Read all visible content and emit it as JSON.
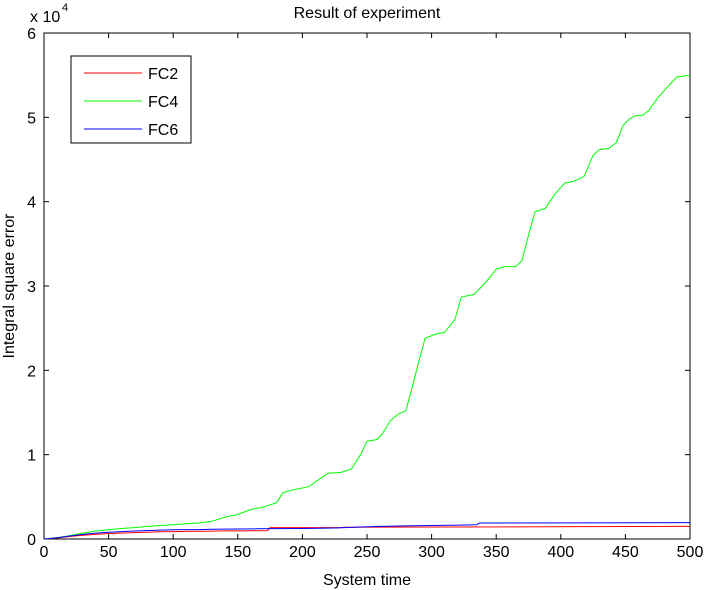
{
  "chart_data": {
    "type": "line",
    "title": "Result of experiment",
    "xlabel": "System time",
    "ylabel": "Integral square error",
    "y_exponent_label": "x 10",
    "y_exponent_power": "4",
    "xlim": [
      0,
      500
    ],
    "ylim": [
      0,
      60000
    ],
    "xticks": [
      0,
      50,
      100,
      150,
      200,
      250,
      300,
      350,
      400,
      450,
      500
    ],
    "yticks": [
      0,
      10000,
      20000,
      30000,
      40000,
      50000,
      60000
    ],
    "ytick_labels": [
      "0",
      "1",
      "2",
      "3",
      "4",
      "5",
      "6"
    ],
    "grid": false,
    "legend_position": "top-left",
    "series": [
      {
        "name": "FC2",
        "color": "#ff0000",
        "points": [
          [
            0,
            0
          ],
          [
            10,
            120
          ],
          [
            20,
            300
          ],
          [
            30,
            450
          ],
          [
            40,
            550
          ],
          [
            50,
            650
          ],
          [
            60,
            700
          ],
          [
            70,
            760
          ],
          [
            80,
            800
          ],
          [
            90,
            850
          ],
          [
            100,
            880
          ],
          [
            110,
            900
          ],
          [
            125,
            930
          ],
          [
            140,
            960
          ],
          [
            173,
            1000
          ],
          [
            175,
            1350
          ],
          [
            230,
            1350
          ],
          [
            232,
            1400
          ],
          [
            500,
            1500
          ]
        ]
      },
      {
        "name": "FC4",
        "color": "#00ff00",
        "points": [
          [
            0,
            0
          ],
          [
            10,
            150
          ],
          [
            20,
            400
          ],
          [
            30,
            700
          ],
          [
            40,
            950
          ],
          [
            50,
            1100
          ],
          [
            60,
            1250
          ],
          [
            70,
            1350
          ],
          [
            80,
            1500
          ],
          [
            90,
            1600
          ],
          [
            100,
            1700
          ],
          [
            110,
            1800
          ],
          [
            120,
            1900
          ],
          [
            130,
            2100
          ],
          [
            140,
            2600
          ],
          [
            150,
            2900
          ],
          [
            160,
            3500
          ],
          [
            170,
            3800
          ],
          [
            180,
            4300
          ],
          [
            185,
            5500
          ],
          [
            195,
            5900
          ],
          [
            205,
            6200
          ],
          [
            215,
            7300
          ],
          [
            220,
            7800
          ],
          [
            230,
            7900
          ],
          [
            238,
            8300
          ],
          [
            245,
            10000
          ],
          [
            250,
            11600
          ],
          [
            258,
            11800
          ],
          [
            262,
            12500
          ],
          [
            268,
            14000
          ],
          [
            274,
            14800
          ],
          [
            280,
            15200
          ],
          [
            285,
            18000
          ],
          [
            290,
            21000
          ],
          [
            295,
            23800
          ],
          [
            303,
            24300
          ],
          [
            310,
            24500
          ],
          [
            318,
            26000
          ],
          [
            323,
            28700
          ],
          [
            333,
            29000
          ],
          [
            338,
            29800
          ],
          [
            345,
            31000
          ],
          [
            350,
            32000
          ],
          [
            357,
            32300
          ],
          [
            365,
            32300
          ],
          [
            370,
            33000
          ],
          [
            375,
            36000
          ],
          [
            380,
            38800
          ],
          [
            388,
            39200
          ],
          [
            396,
            41000
          ],
          [
            403,
            42200
          ],
          [
            410,
            42400
          ],
          [
            418,
            43000
          ],
          [
            425,
            45500
          ],
          [
            430,
            46200
          ],
          [
            437,
            46300
          ],
          [
            443,
            47000
          ],
          [
            448,
            49000
          ],
          [
            453,
            49800
          ],
          [
            458,
            50200
          ],
          [
            463,
            50200
          ],
          [
            468,
            50800
          ],
          [
            475,
            52300
          ],
          [
            485,
            54000
          ],
          [
            490,
            54800
          ],
          [
            500,
            55000
          ]
        ]
      },
      {
        "name": "FC6",
        "color": "#0000ff",
        "points": [
          [
            0,
            0
          ],
          [
            10,
            150
          ],
          [
            20,
            350
          ],
          [
            30,
            550
          ],
          [
            40,
            700
          ],
          [
            50,
            800
          ],
          [
            60,
            880
          ],
          [
            70,
            950
          ],
          [
            80,
            1000
          ],
          [
            90,
            1050
          ],
          [
            100,
            1090
          ],
          [
            110,
            1110
          ],
          [
            120,
            1120
          ],
          [
            130,
            1150
          ],
          [
            140,
            1170
          ],
          [
            150,
            1190
          ],
          [
            165,
            1210
          ],
          [
            180,
            1230
          ],
          [
            200,
            1250
          ],
          [
            225,
            1300
          ],
          [
            240,
            1400
          ],
          [
            260,
            1500
          ],
          [
            280,
            1550
          ],
          [
            300,
            1600
          ],
          [
            320,
            1650
          ],
          [
            335,
            1700
          ],
          [
            337,
            1900
          ],
          [
            500,
            1950
          ]
        ]
      }
    ]
  }
}
